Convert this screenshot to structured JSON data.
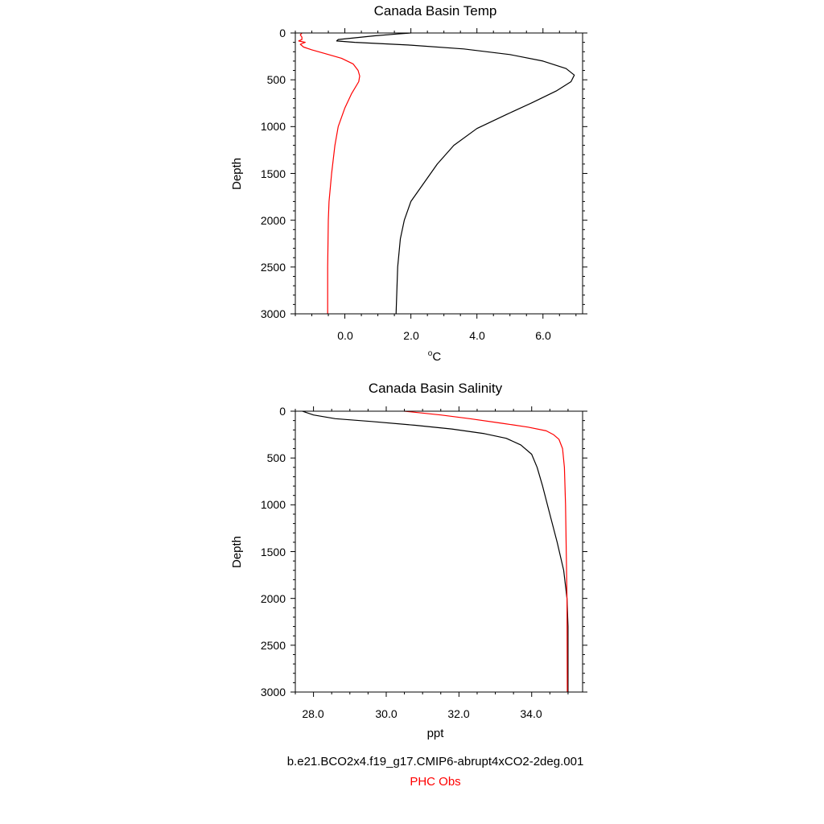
{
  "charts": {
    "temp": {
      "title": "Canada Basin Temp",
      "ylabel": "Depth",
      "xlabel_prefix": "o",
      "xlabel_main": "C",
      "yticks": [
        "0",
        "500",
        "1000",
        "1500",
        "2000",
        "2500",
        "3000"
      ],
      "xticks": [
        "0.0",
        "2.0",
        "4.0",
        "6.0"
      ]
    },
    "salinity": {
      "title": "Canada Basin Salinity",
      "ylabel": "Depth",
      "xlabel": "ppt",
      "yticks": [
        "0",
        "500",
        "1000",
        "1500",
        "2000",
        "2500",
        "3000"
      ],
      "xticks": [
        "28.0",
        "30.0",
        "32.0",
        "34.0"
      ]
    }
  },
  "legend": {
    "model_label": "b.e21.BCO2x4.f19_g17.CMIP6-abrupt4xCO2-2deg.001",
    "model_color": "#000000",
    "obs_label": "PHC Obs",
    "obs_color": "#ff0000"
  },
  "chart_data": [
    {
      "type": "line",
      "title": "Canada Basin Temp",
      "xlabel": "°C",
      "ylabel": "Depth",
      "xlim": [
        -1.5,
        7.2
      ],
      "ylim": [
        3000,
        0
      ],
      "x_major_ticks": [
        0,
        2,
        4,
        6
      ],
      "y_major_ticks": [
        0,
        500,
        1000,
        1500,
        2000,
        2500,
        3000
      ],
      "series": [
        {
          "name": "b.e21.BCO2x4.f19_g17.CMIP6-abrupt4xCO2-2deg.001",
          "color": "#000000",
          "points": [
            [
              2.0,
              0
            ],
            [
              1.6,
              10
            ],
            [
              0.9,
              30
            ],
            [
              -0.2,
              70
            ],
            [
              -0.25,
              85
            ],
            [
              0.3,
              100
            ],
            [
              2.0,
              130
            ],
            [
              3.6,
              170
            ],
            [
              5.0,
              230
            ],
            [
              6.0,
              300
            ],
            [
              6.7,
              380
            ],
            [
              6.95,
              450
            ],
            [
              6.85,
              520
            ],
            [
              6.4,
              620
            ],
            [
              5.7,
              740
            ],
            [
              4.9,
              870
            ],
            [
              4.0,
              1020
            ],
            [
              3.3,
              1200
            ],
            [
              2.8,
              1400
            ],
            [
              2.4,
              1600
            ],
            [
              2.0,
              1800
            ],
            [
              1.8,
              2000
            ],
            [
              1.68,
              2200
            ],
            [
              1.6,
              2500
            ],
            [
              1.55,
              3000
            ]
          ]
        },
        {
          "name": "PHC Obs",
          "color": "#ff0000",
          "points": [
            [
              -1.3,
              0
            ],
            [
              -1.35,
              20
            ],
            [
              -1.3,
              45
            ],
            [
              -1.3,
              70
            ],
            [
              -1.4,
              85
            ],
            [
              -1.2,
              100
            ],
            [
              -1.35,
              120
            ],
            [
              -1.25,
              150
            ],
            [
              -1.0,
              180
            ],
            [
              -0.6,
              220
            ],
            [
              -0.1,
              270
            ],
            [
              0.25,
              330
            ],
            [
              0.4,
              400
            ],
            [
              0.45,
              460
            ],
            [
              0.42,
              520
            ],
            [
              0.2,
              650
            ],
            [
              0.0,
              800
            ],
            [
              -0.2,
              1000
            ],
            [
              -0.3,
              1200
            ],
            [
              -0.4,
              1500
            ],
            [
              -0.48,
              1800
            ],
            [
              -0.5,
              2000
            ],
            [
              -0.52,
              2500
            ],
            [
              -0.52,
              3000
            ]
          ]
        }
      ]
    },
    {
      "type": "line",
      "title": "Canada Basin Salinity",
      "xlabel": "ppt",
      "ylabel": "Depth",
      "xlim": [
        27.5,
        35.4
      ],
      "ylim": [
        3000,
        0
      ],
      "x_major_ticks": [
        28,
        30,
        32,
        34
      ],
      "y_major_ticks": [
        0,
        500,
        1000,
        1500,
        2000,
        2500,
        3000
      ],
      "series": [
        {
          "name": "b.e21.BCO2x4.f19_g17.CMIP6-abrupt4xCO2-2deg.001",
          "color": "#000000",
          "points": [
            [
              27.7,
              0
            ],
            [
              28.0,
              40
            ],
            [
              28.6,
              80
            ],
            [
              29.6,
              110
            ],
            [
              30.8,
              150
            ],
            [
              31.8,
              190
            ],
            [
              32.7,
              240
            ],
            [
              33.3,
              290
            ],
            [
              33.7,
              360
            ],
            [
              34.0,
              460
            ],
            [
              34.15,
              600
            ],
            [
              34.3,
              800
            ],
            [
              34.5,
              1100
            ],
            [
              34.7,
              1400
            ],
            [
              34.88,
              1700
            ],
            [
              34.97,
              2000
            ],
            [
              35.0,
              2300
            ],
            [
              35.0,
              3000
            ]
          ]
        },
        {
          "name": "PHC Obs",
          "color": "#ff0000",
          "points": [
            [
              30.5,
              0
            ],
            [
              31.5,
              40
            ],
            [
              32.3,
              80
            ],
            [
              33.2,
              130
            ],
            [
              33.9,
              170
            ],
            [
              34.4,
              210
            ],
            [
              34.6,
              250
            ],
            [
              34.75,
              300
            ],
            [
              34.85,
              400
            ],
            [
              34.9,
              600
            ],
            [
              34.93,
              1000
            ],
            [
              34.95,
              1500
            ],
            [
              34.97,
              2000
            ],
            [
              34.98,
              3000
            ]
          ]
        }
      ]
    }
  ]
}
